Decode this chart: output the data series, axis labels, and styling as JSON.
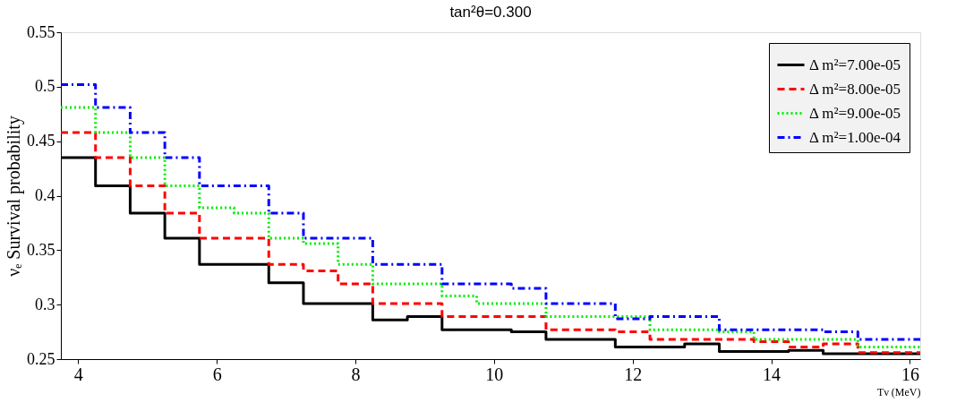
{
  "chart_data": {
    "type": "histogram",
    "title": "tan²θ=0.300",
    "xlabel": "Tν (MeV)",
    "ylabel": "νₑ Survival probability",
    "bins": [
      3.75,
      4.25,
      4.75,
      5.25,
      5.75,
      6.25,
      6.75,
      7.25,
      7.75,
      8.25,
      8.75,
      9.25,
      9.75,
      10.25,
      10.75,
      11.25,
      11.75,
      12.25,
      12.75,
      13.25,
      13.75,
      14.25,
      14.75,
      15.25,
      15.75,
      16.15
    ],
    "series": [
      {
        "name": "Δ m²=7.00e-05",
        "color": "#000000",
        "line_style": "solid",
        "values": [
          0.435,
          0.409,
          0.384,
          0.361,
          0.337,
          0.337,
          0.32,
          0.301,
          0.301,
          0.286,
          0.289,
          0.277,
          0.277,
          0.275,
          0.268,
          0.268,
          0.261,
          0.261,
          0.264,
          0.257,
          0.257,
          0.258,
          0.255,
          0.255,
          0.255
        ]
      },
      {
        "name": "Δ m²=8.00e-05",
        "color": "#ff0000",
        "line_style": "dashed",
        "values": [
          0.458,
          0.435,
          0.409,
          0.384,
          0.361,
          0.361,
          0.337,
          0.331,
          0.319,
          0.301,
          0.301,
          0.289,
          0.289,
          0.289,
          0.277,
          0.277,
          0.275,
          0.268,
          0.268,
          0.268,
          0.266,
          0.261,
          0.264,
          0.256,
          0.256
        ]
      },
      {
        "name": "Δ m²=9.00e-05",
        "color": "#00ee00",
        "line_style": "dotted",
        "values": [
          0.481,
          0.458,
          0.435,
          0.409,
          0.389,
          0.384,
          0.361,
          0.356,
          0.337,
          0.319,
          0.319,
          0.308,
          0.301,
          0.301,
          0.289,
          0.289,
          0.289,
          0.277,
          0.277,
          0.275,
          0.268,
          0.268,
          0.268,
          0.261,
          0.261
        ]
      },
      {
        "name": "Δ m²=1.00e-04",
        "color": "#0000ff",
        "line_style": "dashdot",
        "values": [
          0.502,
          0.481,
          0.458,
          0.435,
          0.409,
          0.409,
          0.384,
          0.361,
          0.361,
          0.337,
          0.337,
          0.319,
          0.319,
          0.315,
          0.301,
          0.301,
          0.287,
          0.289,
          0.289,
          0.277,
          0.277,
          0.277,
          0.275,
          0.268,
          0.268
        ]
      }
    ],
    "xlim": [
      3.75,
      16.15
    ],
    "ylim": [
      0.25,
      0.55
    ],
    "xticks": [
      4,
      6,
      8,
      10,
      12,
      14,
      16
    ],
    "yticks": [
      0.25,
      0.3,
      0.35,
      0.4,
      0.45,
      0.5,
      0.55
    ],
    "grid": false,
    "legend": "top right"
  }
}
